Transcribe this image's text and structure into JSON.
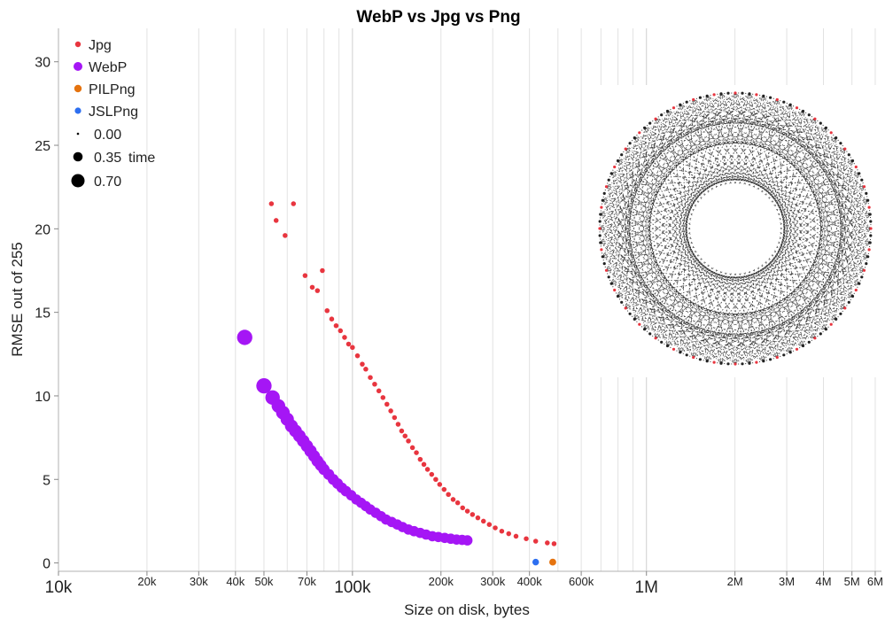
{
  "chart_data": {
    "type": "scatter",
    "title": "WebP vs Jpg vs Png",
    "xlabel": "Size on disk, bytes",
    "ylabel": "RMSE out of 255",
    "xscale": "log",
    "xlim": [
      10000,
      6300000
    ],
    "ylim": [
      -0.5,
      32
    ],
    "yticks": [
      0,
      5,
      10,
      15,
      20,
      25,
      30
    ],
    "xticks": [
      {
        "value": 10000,
        "label": "10k",
        "major": true
      },
      {
        "value": 20000,
        "label": "20k",
        "major": false
      },
      {
        "value": 30000,
        "label": "30k",
        "major": false
      },
      {
        "value": 40000,
        "label": "40k",
        "major": false
      },
      {
        "value": 50000,
        "label": "50k",
        "major": false
      },
      {
        "value": 70000,
        "label": "70k",
        "major": false
      },
      {
        "value": 100000,
        "label": "100k",
        "major": true
      },
      {
        "value": 200000,
        "label": "200k",
        "major": false
      },
      {
        "value": 300000,
        "label": "300k",
        "major": false
      },
      {
        "value": 400000,
        "label": "400k",
        "major": false
      },
      {
        "value": 600000,
        "label": "600k",
        "major": false
      },
      {
        "value": 1000000,
        "label": "1M",
        "major": true
      },
      {
        "value": 2000000,
        "label": "2M",
        "major": false
      },
      {
        "value": 3000000,
        "label": "3M",
        "major": false
      },
      {
        "value": 4000000,
        "label": "4M",
        "major": false
      },
      {
        "value": 5000000,
        "label": "5M",
        "major": false
      },
      {
        "value": 6000000,
        "label": "6M",
        "major": false
      }
    ],
    "extra_gridlines": [
      60000,
      80000,
      90000,
      500000,
      700000,
      800000,
      900000
    ],
    "size_legend": {
      "title": "time",
      "values": [
        "0.00",
        "0.35",
        "0.70"
      ]
    },
    "series": [
      {
        "name": "Jpg",
        "color": "#e8353f",
        "points": [
          [
            53000,
            21.5,
            0.08
          ],
          [
            55000,
            20.5,
            0.08
          ],
          [
            59000,
            19.6,
            0.08
          ],
          [
            63000,
            21.5,
            0.08
          ],
          [
            69000,
            17.2,
            0.08
          ],
          [
            73000,
            16.5,
            0.08
          ],
          [
            76000,
            16.3,
            0.08
          ],
          [
            79000,
            17.5,
            0.08
          ],
          [
            82000,
            15.1,
            0.08
          ],
          [
            85000,
            14.6,
            0.08
          ],
          [
            88000,
            14.2,
            0.08
          ],
          [
            91000,
            13.9,
            0.08
          ],
          [
            94000,
            13.5,
            0.08
          ],
          [
            97000,
            13.1,
            0.08
          ],
          [
            100000,
            12.9,
            0.08
          ],
          [
            104000,
            12.4,
            0.08
          ],
          [
            108000,
            11.9,
            0.08
          ],
          [
            111000,
            11.6,
            0.08
          ],
          [
            115000,
            11.1,
            0.08
          ],
          [
            119000,
            10.7,
            0.08
          ],
          [
            123000,
            10.3,
            0.08
          ],
          [
            127000,
            9.9,
            0.08
          ],
          [
            131000,
            9.5,
            0.08
          ],
          [
            135000,
            9.1,
            0.08
          ],
          [
            139000,
            8.7,
            0.08
          ],
          [
            143000,
            8.3,
            0.08
          ],
          [
            147000,
            7.9,
            0.08
          ],
          [
            151000,
            7.6,
            0.08
          ],
          [
            155000,
            7.3,
            0.08
          ],
          [
            160000,
            6.9,
            0.08
          ],
          [
            165000,
            6.6,
            0.08
          ],
          [
            170000,
            6.2,
            0.08
          ],
          [
            175000,
            5.9,
            0.08
          ],
          [
            180000,
            5.6,
            0.08
          ],
          [
            186000,
            5.3,
            0.08
          ],
          [
            192000,
            5.0,
            0.08
          ],
          [
            198000,
            4.7,
            0.08
          ],
          [
            205000,
            4.4,
            0.08
          ],
          [
            212000,
            4.1,
            0.08
          ],
          [
            220000,
            3.8,
            0.08
          ],
          [
            228000,
            3.6,
            0.08
          ],
          [
            237000,
            3.3,
            0.08
          ],
          [
            246000,
            3.1,
            0.08
          ],
          [
            256000,
            2.9,
            0.08
          ],
          [
            267000,
            2.7,
            0.08
          ],
          [
            279000,
            2.5,
            0.08
          ],
          [
            292000,
            2.3,
            0.08
          ],
          [
            306000,
            2.1,
            0.08
          ],
          [
            322000,
            1.9,
            0.08
          ],
          [
            340000,
            1.75,
            0.08
          ],
          [
            360000,
            1.6,
            0.08
          ],
          [
            390000,
            1.45,
            0.08
          ],
          [
            420000,
            1.3,
            0.08
          ],
          [
            460000,
            1.2,
            0.08
          ],
          [
            485000,
            1.15,
            0.08
          ]
        ]
      },
      {
        "name": "WebP",
        "color": "#a516f5",
        "points": [
          [
            43000,
            13.5,
            0.7
          ],
          [
            50000,
            10.6,
            0.7
          ],
          [
            53500,
            9.9,
            0.65
          ],
          [
            56000,
            9.4,
            0.6
          ],
          [
            58000,
            9.0,
            0.6
          ],
          [
            60000,
            8.6,
            0.58
          ],
          [
            62000,
            8.2,
            0.56
          ],
          [
            64000,
            7.9,
            0.55
          ],
          [
            66000,
            7.6,
            0.54
          ],
          [
            68000,
            7.3,
            0.53
          ],
          [
            70000,
            7.0,
            0.52
          ],
          [
            72000,
            6.7,
            0.52
          ],
          [
            74000,
            6.4,
            0.5
          ],
          [
            76000,
            6.1,
            0.5
          ],
          [
            78000,
            5.85,
            0.48
          ],
          [
            80000,
            5.6,
            0.46
          ],
          [
            83000,
            5.3,
            0.45
          ],
          [
            86000,
            5.0,
            0.44
          ],
          [
            89000,
            4.75,
            0.43
          ],
          [
            92000,
            4.5,
            0.42
          ],
          [
            95000,
            4.3,
            0.42
          ],
          [
            99000,
            4.05,
            0.41
          ],
          [
            103000,
            3.8,
            0.4
          ],
          [
            107000,
            3.6,
            0.4
          ],
          [
            111000,
            3.4,
            0.4
          ],
          [
            115000,
            3.2,
            0.4
          ],
          [
            120000,
            3.0,
            0.4
          ],
          [
            125000,
            2.8,
            0.4
          ],
          [
            130000,
            2.6,
            0.4
          ],
          [
            136000,
            2.45,
            0.4
          ],
          [
            142000,
            2.3,
            0.4
          ],
          [
            148000,
            2.15,
            0.4
          ],
          [
            155000,
            2.0,
            0.4
          ],
          [
            162000,
            1.9,
            0.4
          ],
          [
            170000,
            1.8,
            0.4
          ],
          [
            178000,
            1.7,
            0.4
          ],
          [
            187000,
            1.6,
            0.4
          ],
          [
            196000,
            1.55,
            0.4
          ],
          [
            206000,
            1.5,
            0.4
          ],
          [
            216000,
            1.45,
            0.4
          ],
          [
            226000,
            1.4,
            0.4
          ],
          [
            236000,
            1.38,
            0.4
          ],
          [
            246000,
            1.35,
            0.4
          ]
        ]
      },
      {
        "name": "PILPng",
        "color": "#e5730f",
        "points": [
          [
            480000,
            0.05,
            0.2
          ]
        ]
      },
      {
        "name": "JSLPng",
        "color": "#2d6ff0",
        "points": [
          [
            420000,
            0.05,
            0.18
          ]
        ]
      }
    ]
  }
}
